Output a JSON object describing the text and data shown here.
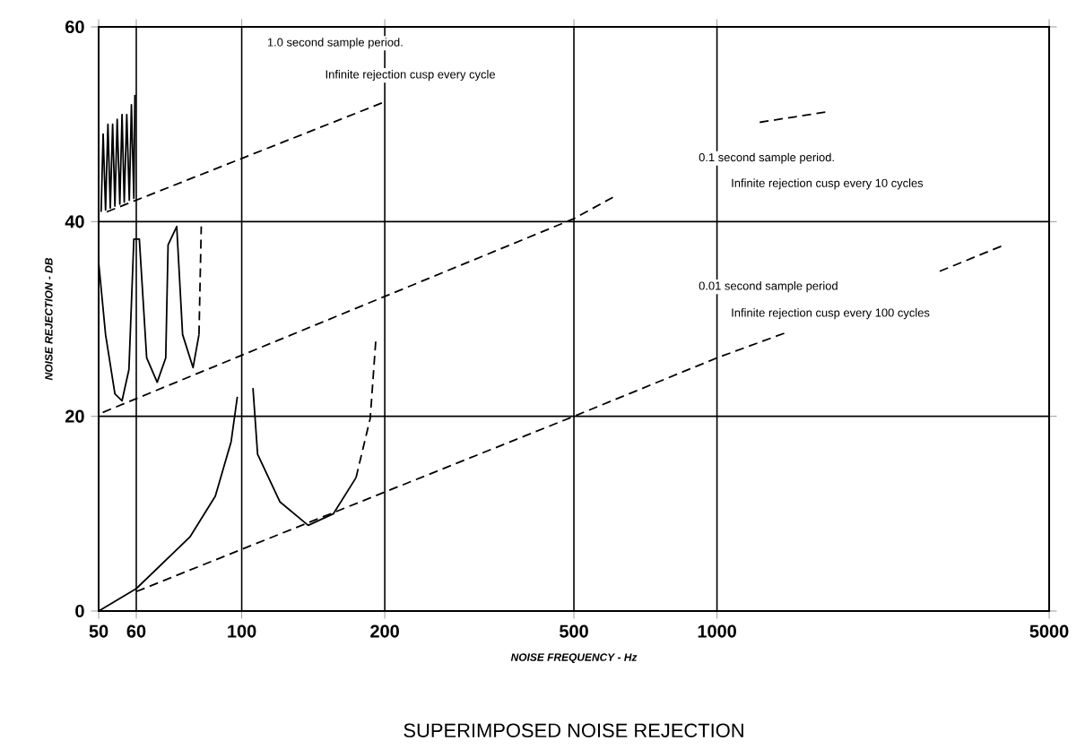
{
  "chart_data": {
    "type": "line",
    "title": "SUPERIMPOSED NOISE REJECTION",
    "xlabel": "NOISE FREQUENCY - Hz",
    "ylabel": "NOISE REJECTION - DB",
    "log": "x",
    "grid": true,
    "marker": "none",
    "xlim": [
      50,
      5000
    ],
    "ylim": [
      0,
      60
    ],
    "xticks": [
      50,
      60,
      100,
      200,
      500,
      1000,
      5000
    ],
    "yticks": [
      0,
      20,
      40,
      60
    ],
    "annotations": [
      "1.0 second sample period.",
      "Infinite rejection cusp every cycle",
      "0.1 second sample period.",
      "Infinite rejection cusp every 10 cycles",
      "0.01 second sample period",
      "Infinite rejection cusp every 100 cycles"
    ],
    "series": [
      {
        "color": "#000000",
        "line_style": "dashed",
        "x": [
          52,
          200
        ],
        "values": [
          41,
          52.3
        ]
      },
      {
        "color": "#000000",
        "line_style": "dashed",
        "x": [
          51,
          500,
          604,
          900,
          1230,
          1716
        ],
        "values": [
          20.4,
          40.3,
          42.5,
          null,
          50.2,
          51.3
        ]
      },
      {
        "color": "#000000",
        "line_style": "dashed",
        "x": [
          60,
          500,
          1000,
          1416,
          2000,
          2942,
          4027
        ],
        "values": [
          2,
          20,
          26,
          28.7,
          null,
          34.9,
          37.6
        ]
      },
      {
        "color": "#000000",
        "line_style": "solid",
        "x": [
          50.6,
          51.1,
          51.7,
          52.3,
          52.9,
          53.5,
          54.1,
          54.7,
          55.4,
          56,
          56.6,
          57.3,
          58,
          58.6,
          59.3,
          59.6
        ],
        "values": [
          41,
          49,
          41.2,
          50,
          41.4,
          50,
          41.6,
          50.5,
          41.8,
          51,
          42,
          51,
          42.2,
          52,
          42.4,
          53
        ]
      },
      {
        "color": "#000000",
        "line_style": "solid",
        "x": [
          50,
          51.7,
          54.1,
          56,
          57.9,
          59.3,
          60.9,
          63.1,
          66.4,
          69.2,
          70,
          73,
          75.1,
          79,
          81.3
        ],
        "values": [
          35.8,
          28.4,
          22.3,
          21.6,
          24.8,
          38.2,
          38.2,
          26,
          23.5,
          26,
          37.6,
          39.5,
          28.4,
          25,
          28.4
        ]
      },
      {
        "color": "#000000",
        "line_style": "dashed",
        "x": [
          81.3,
          82.2
        ],
        "values": [
          28.4,
          39.5
        ]
      },
      {
        "color": "#000000",
        "line_style": "solid",
        "x": [
          50,
          60,
          77.8,
          88,
          95,
          97.9
        ],
        "values": [
          0,
          2.3,
          7.6,
          11.8,
          17.4,
          22
        ]
      },
      {
        "color": "#000000",
        "line_style": "solid",
        "x": [
          105.6,
          108,
          120.4,
          138,
          156,
          174
        ],
        "values": [
          22.9,
          16.1,
          11.2,
          8.8,
          10,
          13.7
        ]
      },
      {
        "color": "#000000",
        "line_style": "dashed",
        "x": [
          174,
          186.4,
          191.5
        ],
        "values": [
          13.7,
          19.8,
          27.8
        ]
      }
    ]
  }
}
